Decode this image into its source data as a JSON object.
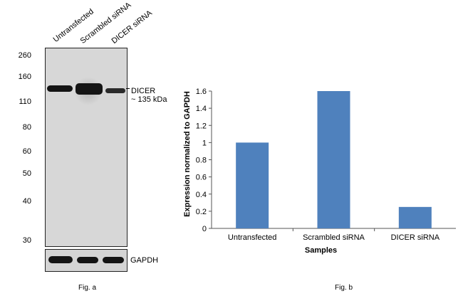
{
  "figure_a": {
    "lanes": [
      "Untransfected",
      "Scrambled siRNA",
      "DICER siRNA"
    ],
    "mw_markers": [
      "260",
      "160",
      "110",
      "80",
      "60",
      "50",
      "40",
      "30"
    ],
    "target_label": "DICER",
    "target_size": "~ 135 kDa",
    "loading_control": "GAPDH",
    "caption": "Fig. a"
  },
  "figure_b": {
    "caption": "Fig. b"
  },
  "chart_data": {
    "type": "bar",
    "categories": [
      "Untransfected",
      "Scrambled siRNA",
      "DICER siRNA"
    ],
    "values": [
      1.0,
      1.6,
      0.25
    ],
    "xlabel": "Samples",
    "ylabel": "Expression normalized to GAPDH",
    "ylim": [
      0,
      1.6
    ],
    "yticks": [
      "0",
      "0.2",
      "0.4",
      "0.6",
      "0.8",
      "1",
      "1.2",
      "1.4",
      "1.6"
    ],
    "bar_color": "#4f81bd",
    "grid": false
  }
}
